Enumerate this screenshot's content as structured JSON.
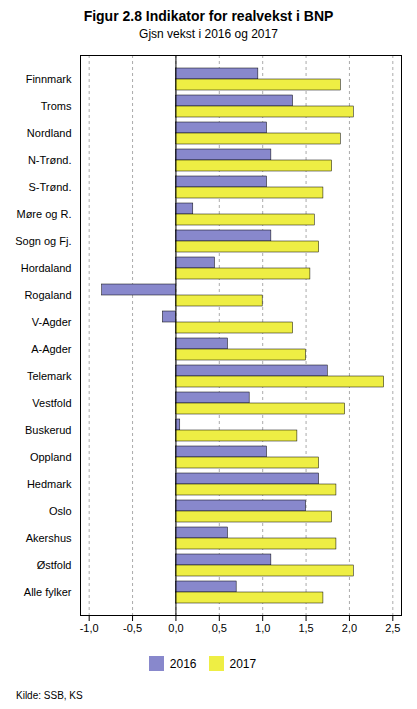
{
  "chart_data": {
    "type": "bar",
    "orientation": "horizontal",
    "title": "Figur 2.8  Indikator for realvekst i BNP",
    "subtitle": "Gjsn vekst i 2016 og 2017",
    "source": "Kilde: SSB, KS",
    "categories": [
      "Alle fylker",
      "Østfold",
      "Akershus",
      "Oslo",
      "Hedmark",
      "Oppland",
      "Buskerud",
      "Vestfold",
      "Telemark",
      "A-Agder",
      "V-Agder",
      "Rogaland",
      "Hordaland",
      "Sogn og Fj.",
      "Møre og R.",
      "S-Trønd.",
      "N-Trønd.",
      "Nordland",
      "Troms",
      "Finnmark"
    ],
    "series": [
      {
        "name": "2016",
        "color": "#8888cc",
        "values": [
          0.7,
          1.1,
          0.6,
          1.5,
          1.65,
          1.05,
          0.05,
          0.85,
          1.75,
          0.6,
          -0.15,
          -0.85,
          0.45,
          1.1,
          0.2,
          1.05,
          1.1,
          1.05,
          1.35,
          0.95
        ]
      },
      {
        "name": "2017",
        "color": "#eeee44",
        "values": [
          1.7,
          2.05,
          1.85,
          1.8,
          1.85,
          1.65,
          1.4,
          1.95,
          2.4,
          1.5,
          1.35,
          1.0,
          1.55,
          1.65,
          1.6,
          1.7,
          1.8,
          1.9,
          2.05,
          1.9
        ]
      }
    ],
    "xlim": [
      -1.1,
      2.6
    ],
    "xticks": [
      {
        "value": -1.0,
        "label": "-1,0"
      },
      {
        "value": -0.5,
        "label": "-0,5"
      },
      {
        "value": 0.0,
        "label": "0,0"
      },
      {
        "value": 0.5,
        "label": "0,5"
      },
      {
        "value": 1.0,
        "label": "1,0"
      },
      {
        "value": 1.5,
        "label": "1,5"
      },
      {
        "value": 2.0,
        "label": "2,0"
      },
      {
        "value": 2.5,
        "label": "2,5"
      }
    ],
    "grid": true,
    "legend": "bottom"
  }
}
